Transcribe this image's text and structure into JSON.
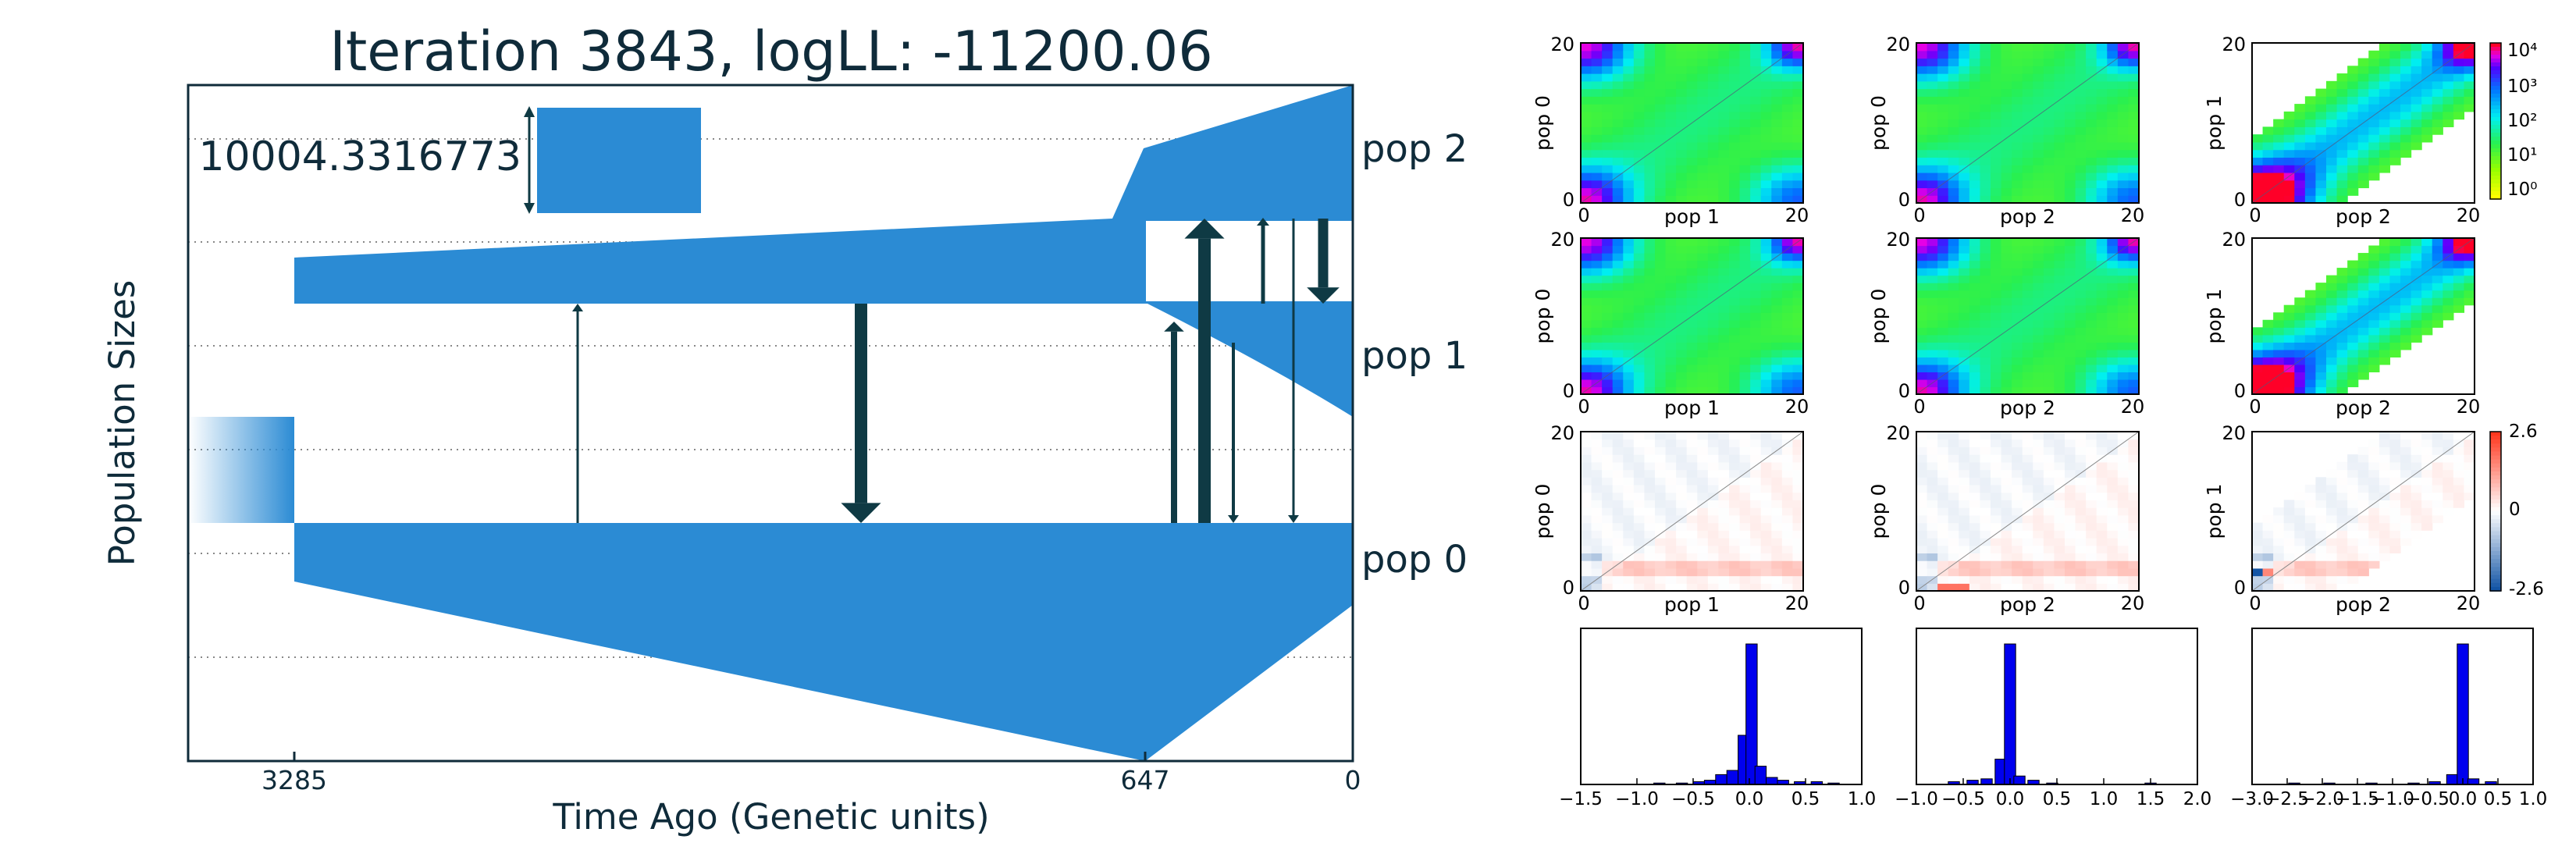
{
  "colors": {
    "pop_fill": "#2b8bd4",
    "migration_arrow": "#0f3a44",
    "frame": "#0f2b3a",
    "hist_bar": "#0000ee",
    "text": "#0f2b3a"
  },
  "chart_data": [
    {
      "type": "demography",
      "title": "Iteration 3843, logLL:  -11200.06",
      "xlabel": "Time Ago (Genetic units)",
      "ylabel": "Population Sizes",
      "x_ticks": [
        "3285",
        "647",
        "0"
      ],
      "scale_bar_label": "10004.3316773",
      "populations": [
        {
          "name": "pop 2"
        },
        {
          "name": "pop 1"
        },
        {
          "name": "pop 0"
        }
      ],
      "split_times": [
        3285,
        647
      ],
      "grid": true
    },
    {
      "type": "heatmap",
      "kind": "sfs-grid",
      "cmap": "log",
      "colorbar_ticks": [
        "10⁴",
        "10³",
        "10²",
        "10¹",
        "10⁰"
      ],
      "axis_max": "20",
      "axis_min": "0",
      "panels": [
        {
          "xlabel": "pop 1",
          "ylabel": "pop 0"
        },
        {
          "xlabel": "pop 2",
          "ylabel": "pop 0"
        },
        {
          "xlabel": "pop 2",
          "ylabel": "pop 1"
        },
        {
          "xlabel": "pop 1",
          "ylabel": "pop 0"
        },
        {
          "xlabel": "pop 2",
          "ylabel": "pop 0"
        },
        {
          "xlabel": "pop 2",
          "ylabel": "pop 1"
        }
      ]
    },
    {
      "type": "heatmap",
      "kind": "residuals",
      "colorbar_ticks": [
        "2.6",
        "0",
        "-2.6"
      ],
      "vmin": -2.6,
      "vmax": 2.6,
      "panels": [
        {
          "xlabel": "pop 1",
          "ylabel": "pop 0"
        },
        {
          "xlabel": "pop 2",
          "ylabel": "pop 0"
        },
        {
          "xlabel": "pop 2",
          "ylabel": "pop 1"
        }
      ]
    },
    {
      "type": "bar",
      "kind": "histograms",
      "panels": [
        {
          "xlim": [
            -1.5,
            1.0
          ],
          "x_ticks": [
            "−1.5",
            "−1.0",
            "−0.5",
            "0.0",
            "0.5",
            "1.0"
          ],
          "bins": [
            {
              "x": -0.8,
              "h": 0.01
            },
            {
              "x": -0.6,
              "h": 0.01
            },
            {
              "x": -0.45,
              "h": 0.02
            },
            {
              "x": -0.35,
              "h": 0.03
            },
            {
              "x": -0.25,
              "h": 0.07
            },
            {
              "x": -0.15,
              "h": 0.1
            },
            {
              "x": -0.05,
              "h": 0.35
            },
            {
              "x": 0.02,
              "h": 1.0
            },
            {
              "x": 0.1,
              "h": 0.13
            },
            {
              "x": 0.2,
              "h": 0.05
            },
            {
              "x": 0.3,
              "h": 0.03
            },
            {
              "x": 0.45,
              "h": 0.02
            },
            {
              "x": 0.6,
              "h": 0.02
            },
            {
              "x": 0.75,
              "h": 0.01
            }
          ]
        },
        {
          "xlim": [
            -1.0,
            2.0
          ],
          "x_ticks": [
            "−1.0",
            "−0.5",
            "0.0",
            "0.5",
            "1.0",
            "1.5",
            "2.0"
          ],
          "bins": [
            {
              "x": -0.6,
              "h": 0.02
            },
            {
              "x": -0.4,
              "h": 0.03
            },
            {
              "x": -0.25,
              "h": 0.04
            },
            {
              "x": -0.1,
              "h": 0.18
            },
            {
              "x": 0.0,
              "h": 1.0
            },
            {
              "x": 0.1,
              "h": 0.06
            },
            {
              "x": 0.25,
              "h": 0.03
            },
            {
              "x": 0.45,
              "h": 0.01
            },
            {
              "x": 1.5,
              "h": 0.01
            }
          ]
        },
        {
          "xlim": [
            -3.0,
            1.0
          ],
          "x_ticks": [
            "−3.0",
            "−2.5",
            "−2.0",
            "−1.5",
            "−1.0",
            "−0.5",
            "0.0",
            "0.5",
            "1.0"
          ],
          "bins": [
            {
              "x": -2.4,
              "h": 0.01
            },
            {
              "x": -1.9,
              "h": 0.01
            },
            {
              "x": -1.3,
              "h": 0.01
            },
            {
              "x": -0.7,
              "h": 0.01
            },
            {
              "x": -0.4,
              "h": 0.02
            },
            {
              "x": -0.15,
              "h": 0.07
            },
            {
              "x": 0.0,
              "h": 1.0
            },
            {
              "x": 0.15,
              "h": 0.04
            },
            {
              "x": 0.4,
              "h": 0.02
            }
          ]
        }
      ]
    }
  ]
}
